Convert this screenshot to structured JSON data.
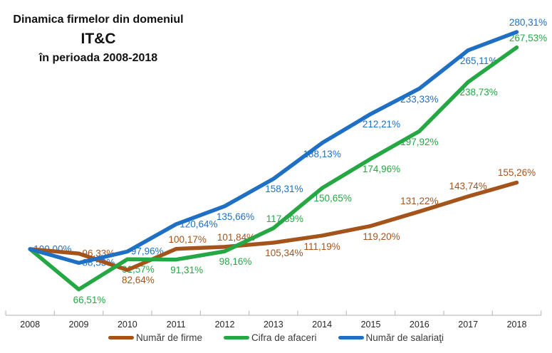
{
  "title": {
    "line1": "Dinamica firmelor din domeniul",
    "line2": "IT&C",
    "line3": "în perioada 2008-2018"
  },
  "chart_data": {
    "type": "line",
    "title": "Dinamica firmelor din domeniul IT&C în perioada 2008-2018",
    "x": [
      2008,
      2009,
      2010,
      2011,
      2012,
      2013,
      2014,
      2015,
      2016,
      2017,
      2018
    ],
    "value_unit": "%",
    "baseline_note": "values are percentages relative to 2008 = 100,00%",
    "ylim": [
      45,
      300
    ],
    "grid": "off",
    "legend_position": "bottom",
    "axis_color": "#bfbfbf",
    "series": [
      {
        "name": "Număr de firme",
        "color": "#A4541B",
        "values": [
          100.0,
          96.33,
          82.64,
          100.17,
          101.84,
          105.34,
          111.19,
          119.2,
          131.22,
          143.74,
          155.26
        ],
        "labels": [
          "",
          "96,33%",
          "82,64%",
          "100,17%",
          "101,84%",
          "105,34%",
          "111,19%",
          "119,20%",
          "131,22%",
          "143,74%",
          "155,26%"
        ],
        "label_pos": [
          "",
          "right",
          "below-right",
          "above-right",
          "above-right",
          "below-right",
          "below",
          "below-right",
          "above",
          "above",
          "above"
        ]
      },
      {
        "name": "Cifra de afaceri",
        "color": "#25A744",
        "values": [
          100.0,
          66.51,
          91.57,
          91.31,
          98.16,
          117.39,
          150.65,
          174.96,
          197.92,
          238.73,
          267.53
        ],
        "labels": [
          "",
          "66,51%",
          "91,57%",
          "91,31%",
          "98,16%",
          "117,39%",
          "150,65%",
          "174,96%",
          "197,92%",
          "238,73%",
          "267,53%"
        ],
        "label_pos": [
          "",
          "below-right",
          "below-right",
          "below-right",
          "below-right",
          "above-right",
          "below-right",
          "below-right",
          "below",
          "below-right",
          "above-right"
        ]
      },
      {
        "name": "Număr de salariaţi",
        "color": "#1F70C4",
        "values": [
          100.0,
          88.53,
          97.96,
          120.64,
          135.66,
          158.31,
          188.13,
          212.21,
          233.33,
          265.11,
          280.31
        ],
        "labels": [
          "100,00%",
          "88,53%",
          "97,96%",
          "120,64%",
          "135,66%",
          "158,31%",
          "188,13%",
          "212,21%",
          "233,33%",
          "265,11%",
          "280,31%"
        ],
        "label_pos": [
          "right",
          "right",
          "right",
          "right",
          "below-right",
          "below-right",
          "below",
          "below-right",
          "below",
          "below-right",
          "above-right"
        ]
      }
    ]
  }
}
